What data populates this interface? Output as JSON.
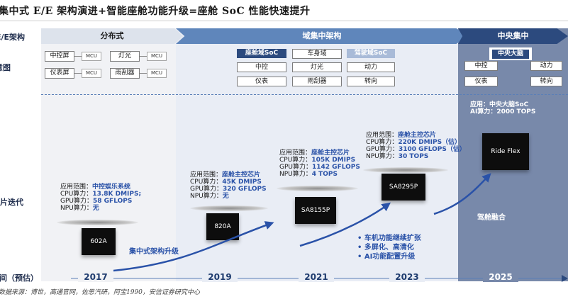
{
  "title": "集中式 E/E 架构演进+智能座舱功能升级=座舱 SoC 性能快速提升",
  "row_labels": {
    "ee": "E/E架构",
    "schematic": "示意图",
    "chip": "芯片迭代",
    "time": "时间（预估）"
  },
  "phases": {
    "distributed": "分布式",
    "domain": "域集中架构",
    "central": "中央集中"
  },
  "distributed_boxes": [
    {
      "name": "中控屏",
      "mcu": "MCU"
    },
    {
      "name": "灯光",
      "mcu": "MCU"
    },
    {
      "name": "仪表屏",
      "mcu": "MCU"
    },
    {
      "name": "雨刮器",
      "mcu": "MCU"
    }
  ],
  "domain_cols": [
    {
      "header": "座舱域SoC",
      "items": [
        "中控",
        "仪表"
      ]
    },
    {
      "header": "车身域",
      "items": [
        "灯光",
        "雨刮器"
      ]
    },
    {
      "header": "驾驶域SoC",
      "items": [
        "动力",
        "转向"
      ]
    }
  ],
  "central": {
    "brain": "中央大脑",
    "items": [
      "中控",
      "动力",
      "仪表",
      "转向"
    ],
    "app": "应用：中央大脑SoC",
    "ai": "AI算力：2000 TOPS",
    "chip": "Ride Flex",
    "fusion": "驾舱融合"
  },
  "chips": [
    {
      "name": "602A",
      "specs": [
        [
          "应用范围：",
          "中控娱乐系统"
        ],
        [
          "CPU算力：",
          "13.8K DMIPS;"
        ],
        [
          "GPU算力：",
          "58 GFLOPS"
        ],
        [
          "NPU算力：",
          "无"
        ]
      ]
    },
    {
      "name": "820A",
      "specs": [
        [
          "应用范围：",
          "座舱主控芯片"
        ],
        [
          "CPU算力：",
          "45K DMIPS"
        ],
        [
          "GPU算力：",
          "320 GFLOPS"
        ],
        [
          "NPU算力：",
          "无"
        ]
      ]
    },
    {
      "name": "SA8155P",
      "specs": [
        [
          "应用范围：",
          "座舱主控芯片"
        ],
        [
          "CPU算力：",
          "105K DMIPS"
        ],
        [
          "GPU算力：",
          "1142 GFLOPS"
        ],
        [
          "NPU算力：",
          "4 TOPS"
        ]
      ]
    },
    {
      "name": "SA8295P",
      "specs": [
        [
          "应用范围：",
          "座舱主控芯片"
        ],
        [
          "CPU算力：",
          "220K DMIPS（估）"
        ],
        [
          "GPU算力：",
          "3100 GFLOPS（估）"
        ],
        [
          "NPU算力：",
          "30 TOPS"
        ]
      ]
    }
  ],
  "arrow_label": "集中式架构升级",
  "bullets": [
    "车机功能继续扩张",
    "多屏化、高清化",
    "AI功能配置升级"
  ],
  "years": [
    "2017",
    "2019",
    "2021",
    "2023",
    "2025"
  ],
  "source": "数据来源：博世，高通官网，佐思汽研，阿宝1990，安信证券研究中心",
  "colors": {
    "accent_blue": "#2a52a8",
    "domain_header": "#5f86bb",
    "central_header": "#2c4a7e",
    "central_bg": "#7889aa",
    "cockpit_soc": "#2c4a7e",
    "driving_soc": "#a9bbd8"
  }
}
